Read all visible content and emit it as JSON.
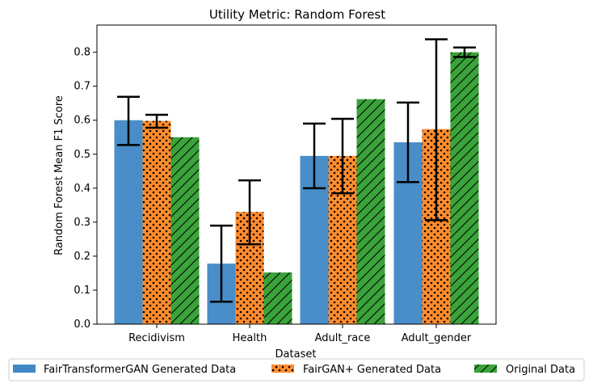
{
  "chart_data": {
    "type": "bar",
    "title": "Utility Metric: Random Forest",
    "xlabel": "Dataset",
    "ylabel": "Random Forest Mean F1 Score",
    "ylim": [
      0,
      0.88
    ],
    "yticks": [
      "0.0",
      "0.1",
      "0.2",
      "0.3",
      "0.4",
      "0.5",
      "0.6",
      "0.7",
      "0.8"
    ],
    "categories": [
      "Recidivism",
      "Health",
      "Adult_race",
      "Adult_gender"
    ],
    "grid": false,
    "legend_position": "bottom",
    "series": [
      {
        "name": "FairTransformerGAN Generated Data",
        "color": "#3f88c5",
        "pattern": "solid",
        "values": [
          0.6,
          0.178,
          0.495,
          0.535
        ],
        "err_low": [
          0.527,
          0.066,
          0.4,
          0.418
        ],
        "err_high": [
          0.669,
          0.29,
          0.59,
          0.652
        ]
      },
      {
        "name": "FairGAN+ Generated Data",
        "color": "#ff8c2e",
        "pattern": "dots",
        "values": [
          0.598,
          0.33,
          0.495,
          0.574
        ],
        "err_low": [
          0.578,
          0.235,
          0.385,
          0.306
        ],
        "err_high": [
          0.616,
          0.423,
          0.604,
          0.838
        ]
      },
      {
        "name": "Original Data",
        "color": "#3aa33a",
        "pattern": "hatch",
        "values": [
          0.55,
          0.152,
          0.662,
          0.8
        ],
        "err_low": [
          null,
          null,
          null,
          0.786
        ],
        "err_high": [
          null,
          null,
          null,
          0.814
        ]
      }
    ]
  }
}
